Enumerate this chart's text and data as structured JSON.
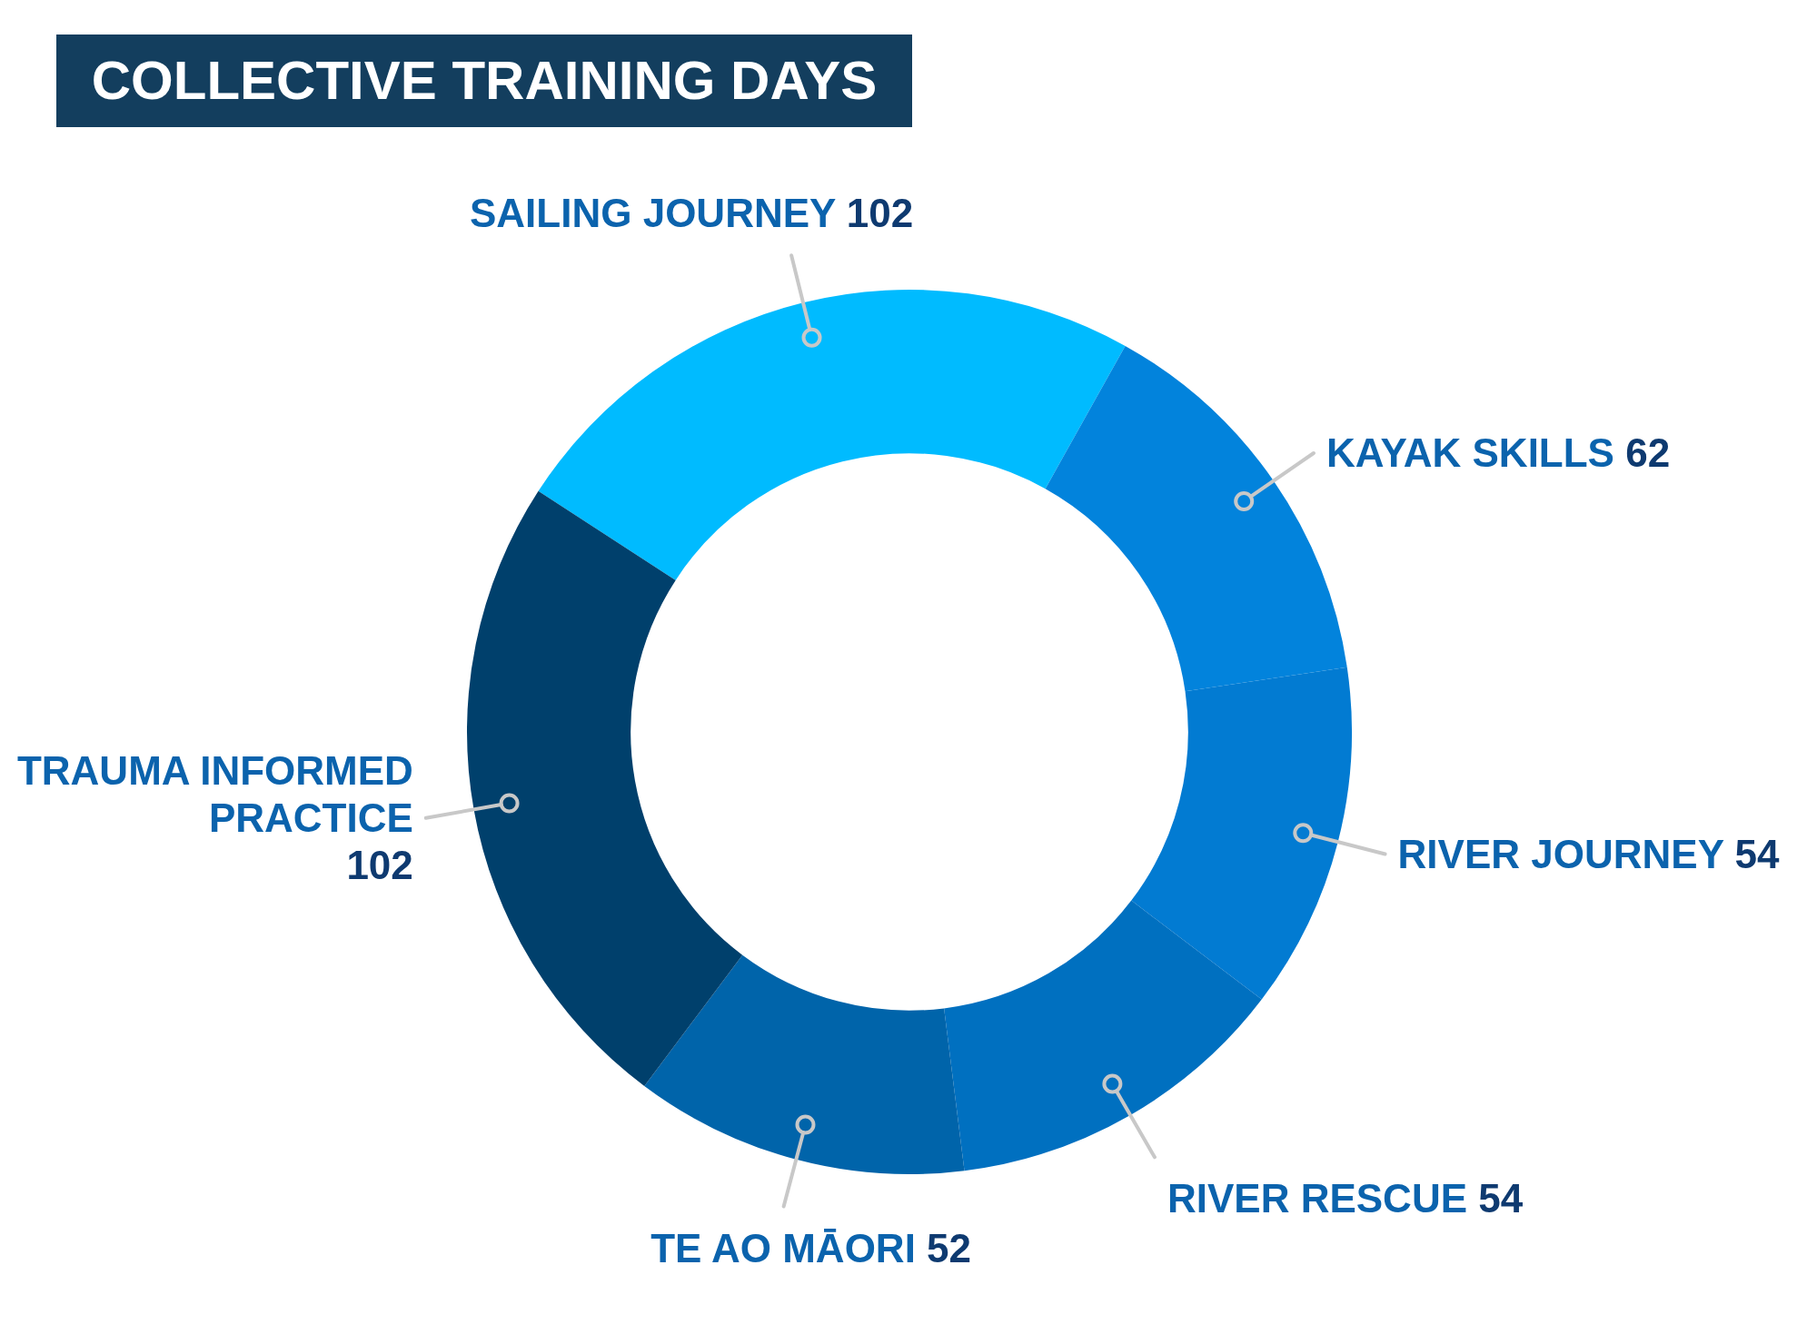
{
  "chart_data": {
    "type": "donut",
    "title": "COLLECTIVE TRAINING DAYS",
    "categories": [
      "SAILING JOURNEY",
      "KAYAK SKILLS",
      "RIVER JOURNEY",
      "RIVER RESCUE",
      "TE AO MĀORI",
      "TRAUMA INFORMED PRACTICE"
    ],
    "values": [
      102,
      62,
      54,
      54,
      52,
      102
    ],
    "colors": [
      "#00bbff",
      "#0283dc",
      "#027bd2",
      "#0070c0",
      "#0064aa",
      "#00406c"
    ],
    "data_labels": true
  }
}
